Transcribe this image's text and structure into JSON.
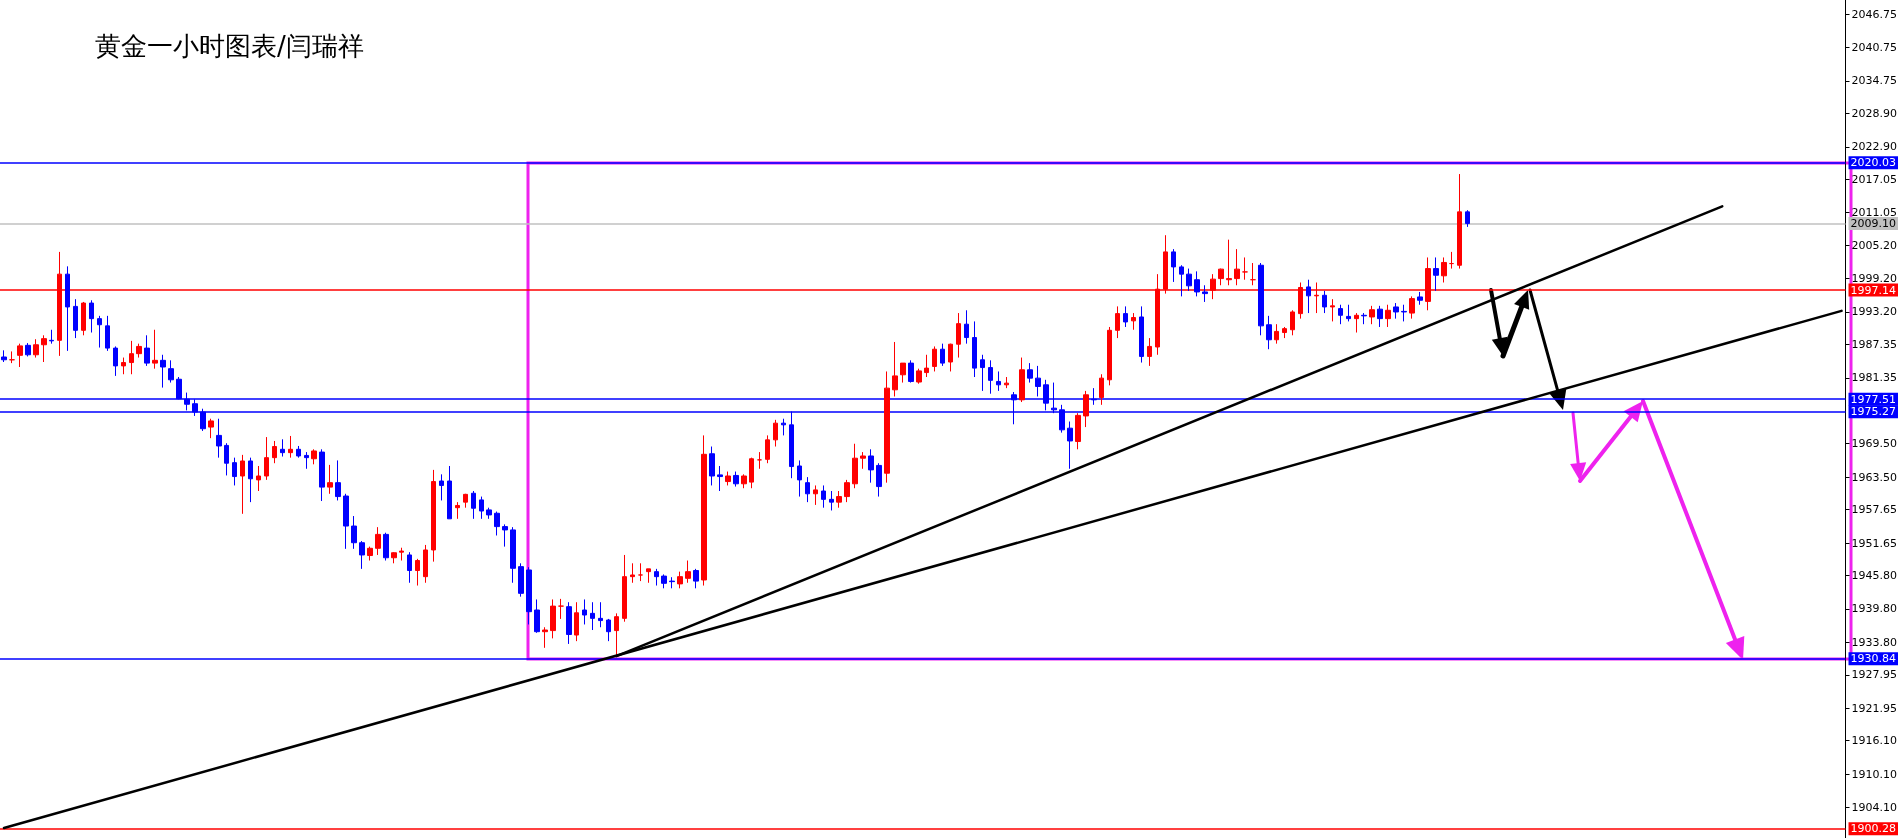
{
  "chart_data": {
    "type": "candlestick",
    "title": "黄金一小时图表/闫瑞祥",
    "categories": [
      null,
      null,
      null,
      null,
      null,
      null,
      null,
      null,
      null,
      null,
      null,
      null,
      null,
      null,
      null,
      null,
      null,
      null,
      null,
      null,
      null,
      null,
      null,
      null,
      null,
      null,
      null,
      null,
      null,
      null,
      null,
      null,
      null,
      null,
      null,
      null,
      null,
      null,
      null,
      null,
      null,
      null,
      null,
      null,
      null,
      null,
      null,
      null,
      null,
      null,
      null,
      null,
      null,
      null,
      null,
      null,
      null,
      null,
      null,
      null,
      null,
      null,
      null,
      null,
      null,
      null,
      null,
      null,
      null,
      null,
      null,
      null,
      null,
      null,
      null,
      null,
      null,
      null,
      null,
      null,
      null,
      null,
      null,
      null,
      null,
      null,
      null,
      null,
      null,
      null,
      null,
      null,
      null,
      null,
      null,
      null,
      null,
      null,
      null,
      null,
      null,
      null,
      null,
      null,
      null,
      null,
      null,
      null,
      null,
      null,
      null,
      null,
      null,
      null,
      null,
      null,
      null,
      null,
      null,
      null,
      null,
      null,
      null,
      null,
      null,
      null,
      null,
      null,
      null,
      null,
      null,
      null,
      null,
      null,
      null,
      null,
      null,
      null,
      null,
      null,
      null,
      null,
      null,
      null,
      null,
      null,
      null,
      null,
      null,
      null,
      null,
      null,
      null,
      null,
      null,
      null,
      null,
      null,
      null,
      null,
      null,
      null,
      null,
      null,
      null,
      null,
      null,
      null,
      null,
      null,
      null,
      null,
      null,
      null,
      null,
      null,
      null,
      null,
      null,
      null,
      null,
      null,
      null,
      null,
      null,
      null,
      null,
      null,
      null,
      null,
      null,
      null,
      null,
      null,
      null,
      null,
      null,
      null,
      null,
      null,
      null,
      null,
      null,
      null,
      null,
      null,
      null,
      null,
      null,
      null,
      null,
      null,
      null,
      null,
      null,
      null,
      null,
      null,
      null,
      null,
      null,
      null,
      null,
      null,
      null,
      null,
      null,
      null,
      null,
      null,
      null,
      null
    ],
    "ohlc": [
      [
        1985.1,
        1986.3,
        1984.2,
        1984.6
      ],
      [
        1984.6,
        1986.1,
        1984.0,
        1984.6
      ],
      [
        1985.4,
        1987.5,
        1983.3,
        1987.1
      ],
      [
        1987.2,
        1987.6,
        1985.2,
        1985.5
      ],
      [
        1985.5,
        1988.3,
        1985.0,
        1987.3
      ],
      [
        1987.3,
        1989.0,
        1984.2,
        1988.4
      ],
      [
        1988.1,
        1990.0,
        1987.5,
        1988.0
      ],
      [
        1988.1,
        2004.0,
        1985.3,
        2000.0
      ],
      [
        2000.0,
        2001.4,
        1986.2,
        1994.1
      ],
      [
        1994.2,
        1995.5,
        1988.5,
        1989.9
      ],
      [
        1989.9,
        1995.0,
        1989.0,
        1994.8
      ],
      [
        1994.8,
        1995.3,
        1989.5,
        1992.0
      ],
      [
        1992.0,
        1992.5,
        1986.8,
        1990.9
      ],
      [
        1990.7,
        1992.5,
        1986.2,
        1986.7
      ],
      [
        1986.7,
        1987.0,
        1981.7,
        1983.5
      ],
      [
        1983.5,
        1985.0,
        1982.0,
        1984.1
      ],
      [
        1984.1,
        1988.0,
        1982.0,
        1985.7
      ],
      [
        1985.7,
        1987.5,
        1985.0,
        1987.0
      ],
      [
        1986.7,
        1989.0,
        1983.5,
        1984.0
      ],
      [
        1984.0,
        1990.0,
        1983.0,
        1984.5
      ],
      [
        1984.5,
        1985.5,
        1979.6,
        1983.3
      ],
      [
        1983.0,
        1984.5,
        1980.5,
        1981.0
      ],
      [
        1981.1,
        1981.5,
        1977.5,
        1977.6
      ],
      [
        1977.5,
        1978.7,
        1975.5,
        1976.6
      ],
      [
        1976.7,
        1977.5,
        1974.5,
        1975.2
      ],
      [
        1975.2,
        1975.8,
        1971.8,
        1972.2
      ],
      [
        1972.5,
        1974.0,
        1970.5,
        1973.6
      ],
      [
        1971.0,
        1974.0,
        1967.0,
        1969.1
      ],
      [
        1969.2,
        1969.6,
        1963.8,
        1966.0
      ],
      [
        1966.1,
        1967.0,
        1962.0,
        1963.6
      ],
      [
        1963.7,
        1967.5,
        1956.9,
        1966.4
      ],
      [
        1966.4,
        1967.0,
        1959.0,
        1963.2
      ],
      [
        1963.0,
        1965.5,
        1961.0,
        1963.7
      ],
      [
        1963.7,
        1970.7,
        1963.0,
        1967.0
      ],
      [
        1967.0,
        1970.0,
        1966.0,
        1969.0
      ],
      [
        1968.5,
        1970.3,
        1967.2,
        1967.9
      ],
      [
        1967.9,
        1970.9,
        1967.0,
        1968.5
      ],
      [
        1968.5,
        1969.1,
        1967.0,
        1967.3
      ],
      [
        1967.4,
        1968.0,
        1965.0,
        1967.0
      ],
      [
        1966.8,
        1968.5,
        1965.8,
        1968.2
      ],
      [
        1968.0,
        1968.5,
        1959.2,
        1961.7
      ],
      [
        1961.7,
        1965.7,
        1960.5,
        1962.5
      ],
      [
        1962.5,
        1966.5,
        1959.3,
        1960.0
      ],
      [
        1960.1,
        1960.5,
        1950.6,
        1954.7
      ],
      [
        1954.7,
        1956.5,
        1950.6,
        1951.7
      ],
      [
        1951.7,
        1952.0,
        1947.0,
        1949.5
      ],
      [
        1949.4,
        1951.0,
        1948.5,
        1950.7
      ],
      [
        1950.7,
        1954.5,
        1949.5,
        1953.2
      ],
      [
        1953.2,
        1953.5,
        1948.5,
        1949.0
      ],
      [
        1949.0,
        1950.0,
        1948.0,
        1949.9
      ],
      [
        1950.0,
        1950.8,
        1948.5,
        1950.2
      ],
      [
        1949.5,
        1950.0,
        1944.5,
        1946.7
      ],
      [
        1946.7,
        1948.8,
        1944.0,
        1948.5
      ],
      [
        1945.6,
        1951.3,
        1944.5,
        1950.4
      ],
      [
        1950.4,
        1964.8,
        1948.3,
        1962.7
      ],
      [
        1962.8,
        1964.0,
        1959.3,
        1962.0
      ],
      [
        1962.8,
        1965.5,
        1956.0,
        1956.0
      ],
      [
        1958.0,
        1959.0,
        1956.0,
        1958.4
      ],
      [
        1959.0,
        1960.5,
        1958.0,
        1960.4
      ],
      [
        1960.6,
        1961.0,
        1956.0,
        1957.9
      ],
      [
        1959.4,
        1960.0,
        1956.0,
        1957.4
      ],
      [
        1957.6,
        1958.0,
        1956.0,
        1956.7
      ],
      [
        1957.0,
        1957.3,
        1953.0,
        1954.6
      ],
      [
        1954.6,
        1955.0,
        1951.0,
        1954.0
      ],
      [
        1954.0,
        1954.5,
        1944.5,
        1947.1
      ],
      [
        1947.4,
        1948.0,
        1942.0,
        1942.6
      ],
      [
        1946.8,
        1947.3,
        1937.0,
        1939.3
      ],
      [
        1939.6,
        1941.5,
        1935.5,
        1935.7
      ],
      [
        1935.7,
        1936.5,
        1932.8,
        1936.0
      ],
      [
        1935.9,
        1941.5,
        1934.5,
        1940.3
      ],
      [
        1940.3,
        1941.6,
        1938.0,
        1940.3
      ],
      [
        1940.2,
        1941.0,
        1933.5,
        1935.2
      ],
      [
        1935.1,
        1941.0,
        1934.0,
        1939.1
      ],
      [
        1939.6,
        1941.5,
        1937.0,
        1938.7
      ],
      [
        1939.0,
        1941.0,
        1936.0,
        1938.1
      ],
      [
        1938.1,
        1941.0,
        1936.5,
        1937.7
      ],
      [
        1937.8,
        1938.0,
        1934.0,
        1935.7
      ],
      [
        1935.9,
        1939.0,
        1931.5,
        1938.4
      ],
      [
        1938.1,
        1949.5,
        1937.5,
        1945.6
      ],
      [
        1945.6,
        1948.0,
        1944.5,
        1945.9
      ],
      [
        1945.9,
        1948.0,
        1944.8,
        1945.9
      ],
      [
        1946.5,
        1947.0,
        1944.5,
        1947.0
      ],
      [
        1946.5,
        1947.0,
        1944.0,
        1945.6
      ],
      [
        1945.7,
        1946.0,
        1943.5,
        1944.4
      ],
      [
        1944.8,
        1945.5,
        1943.5,
        1944.7
      ],
      [
        1944.3,
        1946.5,
        1943.5,
        1945.6
      ],
      [
        1945.3,
        1948.5,
        1944.5,
        1946.5
      ],
      [
        1946.7,
        1947.0,
        1943.5,
        1944.8
      ],
      [
        1945.0,
        1971.0,
        1944.0,
        1967.6
      ],
      [
        1967.7,
        1969.0,
        1962.0,
        1963.7
      ],
      [
        1963.9,
        1965.5,
        1961.0,
        1963.6
      ],
      [
        1962.7,
        1964.5,
        1962.0,
        1963.7
      ],
      [
        1963.8,
        1964.5,
        1961.8,
        1962.3
      ],
      [
        1962.3,
        1964.0,
        1961.5,
        1963.7
      ],
      [
        1962.6,
        1967.0,
        1961.5,
        1966.8
      ],
      [
        1966.6,
        1968.0,
        1965.0,
        1966.6
      ],
      [
        1966.7,
        1971.0,
        1966.0,
        1970.2
      ],
      [
        1970.2,
        1973.8,
        1969.0,
        1973.2
      ],
      [
        1973.2,
        1974.0,
        1971.0,
        1972.9
      ],
      [
        1972.9,
        1975.3,
        1963.3,
        1965.4
      ],
      [
        1965.5,
        1966.5,
        1960.0,
        1963.0
      ],
      [
        1962.5,
        1963.5,
        1959.0,
        1960.5
      ],
      [
        1960.5,
        1962.0,
        1958.5,
        1961.2
      ],
      [
        1961.0,
        1962.0,
        1958.0,
        1959.5
      ],
      [
        1959.5,
        1961.0,
        1957.5,
        1959.0
      ],
      [
        1959.0,
        1961.0,
        1958.0,
        1960.0
      ],
      [
        1960.0,
        1963.0,
        1959.0,
        1962.5
      ],
      [
        1962.3,
        1969.5,
        1961.5,
        1966.9
      ],
      [
        1966.9,
        1968.0,
        1965.0,
        1967.3
      ],
      [
        1967.3,
        1968.5,
        1962.5,
        1964.8
      ],
      [
        1965.6,
        1966.0,
        1960.0,
        1961.8
      ],
      [
        1964.2,
        1982.5,
        1962.5,
        1979.5
      ],
      [
        1979.2,
        1987.8,
        1978.0,
        1981.7
      ],
      [
        1981.9,
        1984.0,
        1980.5,
        1984.0
      ],
      [
        1984.0,
        1984.5,
        1980.5,
        1980.7
      ],
      [
        1980.6,
        1983.0,
        1980.3,
        1982.6
      ],
      [
        1982.3,
        1985.5,
        1981.5,
        1983.1
      ],
      [
        1983.4,
        1987.0,
        1982.5,
        1986.5
      ],
      [
        1986.5,
        1987.5,
        1983.5,
        1984.0
      ],
      [
        1984.2,
        1987.5,
        1982.5,
        1987.4
      ],
      [
        1987.4,
        1993.0,
        1985.0,
        1991.1
      ],
      [
        1991.0,
        1993.5,
        1987.5,
        1988.6
      ],
      [
        1988.6,
        1991.5,
        1981.5,
        1983.1
      ],
      [
        1984.6,
        1985.5,
        1979.0,
        1983.2
      ],
      [
        1983.2,
        1984.5,
        1978.5,
        1980.9
      ],
      [
        1980.7,
        1982.5,
        1979.0,
        1980.1
      ],
      [
        1980.1,
        1981.5,
        1979.5,
        1980.4
      ],
      [
        1978.3,
        1978.8,
        1973.0,
        1977.4
      ],
      [
        1977.4,
        1985.0,
        1977.0,
        1982.8
      ],
      [
        1982.8,
        1984.0,
        1980.5,
        1981.3
      ],
      [
        1981.3,
        1983.5,
        1978.0,
        1979.8
      ],
      [
        1980.1,
        1981.0,
        1975.5,
        1976.8
      ],
      [
        1975.9,
        1980.5,
        1975.0,
        1975.6
      ],
      [
        1975.6,
        1976.5,
        1971.5,
        1972.0
      ],
      [
        1972.3,
        1973.5,
        1965.0,
        1970.0
      ],
      [
        1969.9,
        1975.0,
        1968.5,
        1974.6
      ],
      [
        1974.5,
        1979.0,
        1972.5,
        1978.3
      ],
      [
        1977.5,
        1979.5,
        1976.5,
        1977.4
      ],
      [
        1977.8,
        1982.0,
        1976.5,
        1981.3
      ],
      [
        1981.0,
        1990.5,
        1980.0,
        1989.9
      ],
      [
        1989.9,
        1994.2,
        1988.5,
        1992.9
      ],
      [
        1992.9,
        1994.2,
        1990.5,
        1991.4
      ],
      [
        1991.6,
        1993.0,
        1990.0,
        1992.2
      ],
      [
        1992.3,
        1994.2,
        1984.1,
        1985.2
      ],
      [
        1985.2,
        1988.5,
        1983.5,
        1987.0
      ],
      [
        1986.9,
        2000.0,
        1985.5,
        1997.3
      ],
      [
        1997.3,
        2007.0,
        1996.5,
        2004.0
      ],
      [
        2004.0,
        2004.5,
        1998.6,
        2001.3
      ],
      [
        2001.3,
        2001.6,
        1996.0,
        2000.0
      ],
      [
        2000.0,
        2001.0,
        1997.0,
        1997.9
      ],
      [
        1999.0,
        2000.5,
        1996.0,
        1996.8
      ],
      [
        1996.8,
        1998.0,
        1995.0,
        1996.5
      ],
      [
        1997.1,
        2000.0,
        1995.5,
        1999.1
      ],
      [
        1999.2,
        2001.0,
        1998.0,
        2000.9
      ],
      [
        1999.0,
        2006.2,
        1998.0,
        1999.2
      ],
      [
        1999.2,
        2004.5,
        1998.0,
        2000.9
      ],
      [
        2000.4,
        2003.0,
        1999.0,
        2000.4
      ],
      [
        1999.0,
        2002.0,
        1998.0,
        1999.0
      ],
      [
        2001.6,
        2002.0,
        1989.0,
        1990.7
      ],
      [
        1990.9,
        1992.5,
        1986.5,
        1988.2
      ],
      [
        1988.2,
        1991.0,
        1987.5,
        1989.7
      ],
      [
        1989.5,
        1990.5,
        1988.5,
        1990.2
      ],
      [
        1990.0,
        1993.5,
        1989.0,
        1993.2
      ],
      [
        1992.9,
        1998.5,
        1992.0,
        1997.6
      ],
      [
        1997.7,
        1999.0,
        1993.0,
        1996.1
      ],
      [
        1996.1,
        1998.5,
        1993.0,
        1996.2
      ],
      [
        1996.2,
        1997.0,
        1993.0,
        1994.1
      ],
      [
        1994.3,
        1995.5,
        1991.5,
        1994.1
      ],
      [
        1993.8,
        1994.5,
        1991.0,
        1992.6
      ],
      [
        1992.4,
        1994.5,
        1991.5,
        1992.0
      ],
      [
        1992.0,
        1993.0,
        1989.5,
        1992.6
      ],
      [
        1992.6,
        1993.0,
        1991.0,
        1992.5
      ],
      [
        1992.3,
        1994.3,
        1991.0,
        1993.6
      ],
      [
        1993.7,
        1994.3,
        1990.5,
        1992.0
      ],
      [
        1992.0,
        1994.5,
        1990.5,
        1993.5
      ],
      [
        1994.1,
        1994.8,
        1992.0,
        1993.2
      ],
      [
        1993.3,
        1994.5,
        1991.5,
        1993.2
      ],
      [
        1993.0,
        1996.0,
        1992.0,
        1995.6
      ],
      [
        1995.9,
        1996.8,
        1994.5,
        1995.3
      ],
      [
        1995.1,
        2003.0,
        1993.5,
        2001.0
      ],
      [
        2001.0,
        2003.0,
        1997.0,
        1999.8
      ],
      [
        1999.7,
        2003.0,
        1998.5,
        2002.1
      ],
      [
        2001.9,
        2004.0,
        2001.0,
        2001.9
      ],
      [
        2001.6,
        2018.0,
        2001.0,
        2011.2
      ],
      [
        2011.2,
        2011.5,
        2008.5,
        2009.1
      ],
      null,
      null,
      null,
      null,
      null,
      null,
      null,
      null,
      null,
      null,
      null,
      null,
      null,
      null,
      null,
      null,
      null,
      null,
      null,
      null,
      null,
      null,
      null,
      null,
      null,
      null,
      null,
      null,
      null,
      null,
      null,
      null,
      null,
      null,
      null,
      null,
      null,
      null,
      null,
      null,
      null,
      null,
      null,
      null,
      null,
      null,
      null
    ],
    "colors": [
      "#0000ff",
      "#ff0000",
      "#ff0000",
      "#0000ff",
      "#ff0000",
      "#ff0000",
      "#0000ff",
      "#ff0000",
      "#0000ff",
      "#0000ff",
      "#ff0000",
      "#0000ff",
      "#0000ff",
      "#0000ff",
      "#0000ff",
      "#ff0000",
      "#ff0000",
      "#ff0000",
      "#0000ff",
      "#ff0000",
      "#0000ff",
      "#0000ff",
      "#0000ff",
      "#0000ff",
      "#0000ff",
      "#0000ff",
      "#ff0000",
      "#0000ff",
      "#0000ff",
      "#0000ff",
      "#ff0000",
      "#0000ff",
      "#ff0000",
      "#ff0000",
      "#ff0000",
      "#0000ff",
      "#ff0000",
      "#0000ff",
      "#0000ff",
      "#ff0000",
      "#0000ff",
      "#ff0000",
      "#0000ff",
      "#0000ff",
      "#0000ff",
      "#0000ff",
      "#ff0000",
      "#ff0000",
      "#0000ff",
      "#ff0000",
      "#ff0000",
      "#0000ff",
      "#ff0000",
      "#ff0000",
      "#ff0000",
      "#0000ff",
      "#0000ff",
      "#ff0000",
      "#ff0000",
      "#0000ff",
      "#0000ff",
      "#0000ff",
      "#0000ff",
      "#0000ff",
      "#0000ff",
      "#0000ff",
      "#0000ff",
      "#0000ff",
      "#ff0000",
      "#ff0000",
      "#ff0000",
      "#0000ff",
      "#ff0000",
      "#0000ff",
      "#0000ff",
      "#0000ff",
      "#0000ff",
      "#ff0000",
      "#ff0000",
      "#ff0000",
      "#ff0000",
      "#ff0000",
      "#0000ff",
      "#0000ff",
      "#0000ff",
      "#ff0000",
      "#ff0000",
      "#0000ff",
      "#ff0000",
      "#0000ff",
      "#0000ff",
      "#ff0000",
      "#0000ff",
      "#ff0000",
      "#ff0000",
      "#ff0000",
      "#ff0000",
      "#ff0000",
      "#0000ff",
      "#0000ff",
      "#0000ff",
      "#0000ff",
      "#ff0000",
      "#0000ff",
      "#0000ff",
      "#ff0000",
      "#ff0000",
      "#ff0000",
      "#ff0000",
      "#0000ff",
      "#0000ff",
      "#ff0000",
      "#ff0000",
      "#ff0000",
      "#0000ff",
      "#ff0000",
      "#ff0000",
      "#ff0000",
      "#0000ff",
      "#ff0000",
      "#ff0000",
      "#0000ff",
      "#0000ff",
      "#0000ff",
      "#0000ff",
      "#0000ff",
      "#ff0000",
      "#0000ff",
      "#ff0000",
      "#0000ff",
      "#0000ff",
      "#0000ff",
      "#0000ff",
      "#0000ff",
      "#0000ff",
      "#ff0000",
      "#ff0000",
      "#0000ff",
      "#ff0000",
      "#ff0000",
      "#ff0000",
      "#0000ff",
      "#ff0000",
      "#0000ff",
      "#ff0000",
      "#ff0000",
      "#ff0000",
      "#0000ff",
      "#0000ff",
      "#0000ff",
      "#0000ff",
      "#0000ff",
      "#ff0000",
      "#ff0000",
      "#ff0000",
      "#ff0000",
      "#ff0000",
      "#ff0000",
      "#0000ff",
      "#0000ff",
      "#ff0000",
      "#ff0000",
      "#ff0000",
      "#ff0000",
      "#0000ff",
      "#ff0000",
      "#0000ff",
      "#ff0000",
      "#0000ff",
      "#0000ff",
      "#ff0000",
      "#0000ff",
      "#ff0000",
      "#0000ff",
      "#ff0000",
      "#0000ff",
      "#0000ff",
      "#ff0000",
      "#0000ff",
      "#ff0000",
      "#0000ff",
      "#ff0000",
      "#ff0000",
      "#ff0000",
      "#0000ff",
      null,
      null,
      null,
      null,
      null,
      null,
      null,
      null,
      null,
      null,
      null,
      null,
      null,
      null,
      null,
      null,
      null,
      null,
      null,
      null,
      null,
      null,
      null,
      null,
      null,
      null,
      null,
      null,
      null,
      null,
      null,
      null,
      null,
      null,
      null,
      null,
      null,
      null,
      null,
      null,
      null,
      null,
      null,
      null,
      null,
      null,
      null
    ],
    "ref_lines": [
      {
        "axis": "y",
        "value": 2020.03,
        "label": "2020.03",
        "color": "#0000ff"
      },
      {
        "axis": "y",
        "value": 2009.1,
        "label": "2009.10",
        "color": "#c0c0c0"
      },
      {
        "axis": "y",
        "value": 1997.14,
        "label": "1997.14",
        "color": "#ff0000"
      },
      {
        "axis": "y",
        "value": 1977.51,
        "label": "1977.51",
        "color": "#0000ff"
      },
      {
        "axis": "y",
        "value": 1975.27,
        "label": "1975.27",
        "color": "#0000ff"
      },
      {
        "axis": "y",
        "value": 1930.84,
        "label": "1930.84",
        "color": "#0000ff"
      },
      {
        "axis": "y",
        "value": 1900.28,
        "label": "1900.28",
        "color": "#ff0000"
      }
    ],
    "ylim": [
      1898.6,
      2049.3
    ],
    "yticks": [
      {
        "value": 2046.75,
        "label": "2046.75"
      },
      {
        "value": 2040.75,
        "label": "2040.75"
      },
      {
        "value": 2034.75,
        "label": "2034.75"
      },
      {
        "value": 2028.9,
        "label": "2028.90"
      },
      {
        "value": 2022.9,
        "label": "2022.90"
      },
      {
        "value": 2017.05,
        "label": "2017.05"
      },
      {
        "value": 2011.05,
        "label": "2011.05"
      },
      {
        "value": 2005.2,
        "label": "2005.20"
      },
      {
        "value": 1999.2,
        "label": "1999.20"
      },
      {
        "value": 1993.2,
        "label": "1993.20"
      },
      {
        "value": 1987.35,
        "label": "1987.35"
      },
      {
        "value": 1981.35,
        "label": "1981.35"
      },
      {
        "value": 1969.5,
        "label": "1969.50"
      },
      {
        "value": 1963.5,
        "label": "1963.50"
      },
      {
        "value": 1957.65,
        "label": "1957.65"
      },
      {
        "value": 1951.65,
        "label": "1951.65"
      },
      {
        "value": 1945.8,
        "label": "1945.80"
      },
      {
        "value": 1939.8,
        "label": "1939.80"
      },
      {
        "value": 1933.8,
        "label": "1933.80"
      },
      {
        "value": 1927.95,
        "label": "1927.95"
      },
      {
        "value": 1921.95,
        "label": "1921.95"
      },
      {
        "value": 1916.1,
        "label": "1916.10"
      },
      {
        "value": 1910.1,
        "label": "1910.10"
      },
      {
        "value": 1904.1,
        "label": "1904.10"
      }
    ],
    "series": [
      {
        "type": "line",
        "color": "#000000",
        "values": [
          null,
          null,
          null,
          null,
          null,
          null,
          null,
          null,
          null,
          null,
          null,
          null,
          null,
          null,
          null,
          null,
          null,
          null,
          null,
          null,
          null,
          null,
          null,
          null,
          null,
          null,
          null,
          null,
          null,
          null,
          null,
          null,
          null,
          null,
          null,
          null,
          null,
          null,
          null,
          null,
          null,
          null,
          null,
          null,
          null,
          null,
          null,
          null,
          null,
          null,
          null,
          null,
          null,
          null,
          null,
          null,
          null,
          null,
          null,
          null,
          null,
          null,
          null,
          null,
          null,
          null,
          null,
          null,
          null,
          null,
          null,
          null,
          null,
          null,
          null,
          null,
          null,
          1931.3,
          null,
          null,
          null,
          null,
          null,
          null,
          null,
          null,
          null,
          null,
          null,
          null,
          null,
          null,
          null,
          null,
          null,
          null,
          null,
          null,
          null,
          null,
          null,
          null,
          null,
          null,
          null,
          null,
          null,
          null,
          null,
          null,
          null,
          null,
          null,
          null,
          null,
          null,
          null,
          null,
          null,
          null,
          null,
          null,
          null,
          null,
          null,
          null,
          null,
          null,
          null,
          null,
          null,
          null,
          null,
          null,
          null,
          null,
          null,
          null,
          null,
          null,
          null,
          null,
          null,
          null,
          null,
          null,
          null,
          null,
          null,
          null,
          null,
          null,
          null,
          null,
          null,
          null,
          null,
          null,
          null,
          null,
          null,
          null,
          null,
          null,
          null,
          null,
          null,
          null,
          null,
          null,
          null,
          null,
          null,
          null,
          null,
          null,
          null,
          null,
          null,
          null,
          null,
          null,
          null,
          null,
          null,
          null,
          null,
          null,
          null,
          null,
          null,
          null,
          null,
          null,
          null,
          null,
          null,
          null,
          null,
          null,
          null,
          null,
          null,
          null,
          null,
          null,
          null,
          null,
          null,
          null,
          null,
          null,
          null,
          null,
          null,
          null,
          2012.2,
          null,
          null,
          null,
          null,
          null,
          null,
          null,
          null,
          null,
          null,
          null,
          null,
          null,
          null,
          null
        ]
      },
      {
        "type": "line",
        "color": "#000000",
        "values": [
          1900.4,
          null,
          null,
          null,
          null,
          null,
          null,
          null,
          null,
          null,
          null,
          null,
          null,
          null,
          null,
          null,
          null,
          null,
          null,
          null,
          null,
          null,
          null,
          null,
          null,
          null,
          null,
          null,
          null,
          null,
          null,
          null,
          null,
          null,
          null,
          null,
          null,
          null,
          null,
          null,
          null,
          null,
          null,
          null,
          null,
          null,
          null,
          null,
          null,
          null,
          null,
          null,
          null,
          null,
          null,
          null,
          null,
          null,
          null,
          null,
          null,
          null,
          null,
          null,
          null,
          null,
          null,
          null,
          null,
          null,
          null,
          null,
          null,
          null,
          null,
          null,
          null,
          null,
          null,
          null,
          null,
          null,
          null,
          null,
          null,
          null,
          null,
          null,
          null,
          null,
          null,
          null,
          null,
          null,
          null,
          null,
          null,
          null,
          null,
          null,
          null,
          null,
          null,
          null,
          null,
          null,
          null,
          null,
          null,
          null,
          null,
          null,
          null,
          null,
          null,
          null,
          null,
          null,
          null,
          null,
          null,
          null,
          null,
          null,
          null,
          null,
          null,
          null,
          null,
          null,
          null,
          null,
          null,
          null,
          null,
          null,
          null,
          null,
          null,
          null,
          null,
          null,
          null,
          null,
          null,
          null,
          null,
          null,
          null,
          null,
          null,
          null,
          null,
          null,
          null,
          null,
          null,
          null,
          null,
          null,
          null,
          null,
          null,
          null,
          null,
          null,
          null,
          null,
          null,
          null,
          null,
          null,
          null,
          null,
          null,
          null,
          null,
          null,
          null,
          null,
          null,
          null,
          null,
          null,
          null,
          null,
          null,
          null,
          null,
          null,
          null,
          null,
          null,
          null,
          null,
          null,
          null,
          null,
          null,
          null,
          null,
          null,
          null,
          null,
          null,
          null,
          null,
          null,
          null,
          null,
          null,
          null,
          null,
          null,
          null,
          null,
          null,
          null,
          null,
          null,
          null,
          null,
          null,
          null,
          null,
          null,
          null,
          null,
          null,
          null,
          null,
          1993.4
        ]
      }
    ],
    "tick_labels": "y",
    "grid": false
  }
}
